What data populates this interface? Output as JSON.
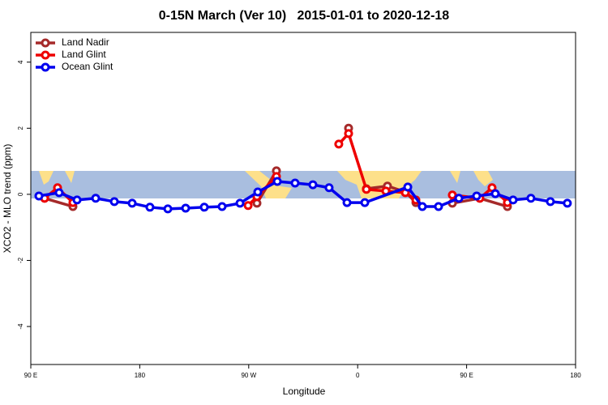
{
  "chart_data": {
    "type": "line",
    "title": "0-15N March (Ver 10)   2015-01-01 to 2020-12-18",
    "x_label": "Longitude",
    "y_label": "XCO2 - MLO trend (ppm)",
    "xlim": [
      90,
      540
    ],
    "ylim": [
      -5.15,
      4.9
    ],
    "xticks": [
      {
        "value": 90,
        "label": "90 E"
      },
      180,
      {
        "value": 270,
        "label": "90 W"
      },
      {
        "value": 360,
        "label": "0"
      },
      {
        "value": 450,
        "label": "90 E"
      },
      {
        "value": 540,
        "label": "180"
      }
    ],
    "yticks": [
      -4,
      -2,
      0,
      2,
      4
    ],
    "legend": "upper left",
    "series": [
      {
        "name": "Land Nadir",
        "color": "#a52a2a",
        "x": [
          101.4,
          124.8,
          null,
          276.8,
          292.9,
          null,
          352.5,
          null,
          367.2,
          384.6,
          399.4,
          408.1,
          null,
          438.2,
          460.9,
          483.7
        ],
        "values": [
          -0.12,
          -0.37,
          null,
          -0.27,
          0.71,
          null,
          2.0,
          null,
          0.17,
          0.25,
          0.07,
          -0.25,
          null,
          -0.27,
          -0.12,
          -0.37
        ]
      },
      {
        "name": "Land Glint",
        "color": "#ee0000",
        "x": [
          101.4,
          112.1,
          124.8,
          null,
          269.5,
          276.8,
          292.9,
          null,
          344.4,
          352.5,
          367.2,
          383.3,
          399.4,
          408.1,
          null,
          438.2,
          460.9,
          471,
          483.7
        ],
        "values": [
          -0.12,
          0.2,
          -0.25,
          null,
          -0.34,
          -0.07,
          0.54,
          null,
          1.52,
          1.84,
          0.15,
          0.1,
          0.05,
          -0.17,
          null,
          -0.02,
          -0.12,
          0.2,
          -0.25
        ]
      },
      {
        "name": "Ocean Glint",
        "color": "#0000ee",
        "x": [
          96.7,
          113.4,
          128.2,
          143.6,
          159,
          173.7,
          188.4,
          203.2,
          217.9,
          233.3,
          248,
          262.8,
          277.5,
          293.6,
          308.3,
          323,
          336.4,
          351.2,
          365.9,
          401.4,
          413.4,
          426.8,
          443.6,
          458.3,
          473.7,
          488.4,
          503.1,
          519.2,
          533.2
        ],
        "values": [
          -0.05,
          0.05,
          -0.17,
          -0.12,
          -0.22,
          -0.27,
          -0.39,
          -0.44,
          -0.42,
          -0.39,
          -0.37,
          -0.27,
          0.07,
          0.39,
          0.34,
          0.29,
          0.2,
          -0.25,
          -0.25,
          0.22,
          -0.37,
          -0.37,
          -0.12,
          -0.05,
          0.02,
          -0.17,
          -0.12,
          -0.22,
          -0.27
        ]
      }
    ]
  }
}
